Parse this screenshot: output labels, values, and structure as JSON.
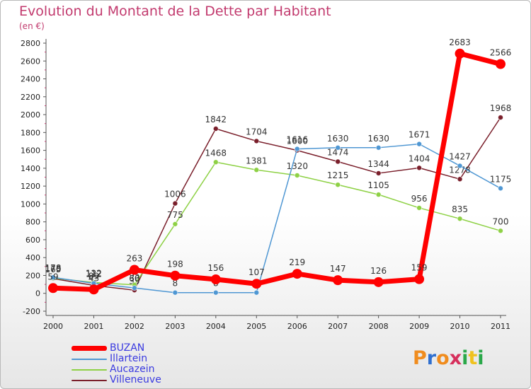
{
  "title": "Evolution du Montant de la Dette par Habitant",
  "subtitle": "(en €)",
  "logo": {
    "letters": [
      "P",
      "r",
      "o",
      "x",
      "i",
      "t",
      "i"
    ],
    "colors": [
      "#f08c1e",
      "#2f6fcf",
      "#f08c1e",
      "#d62f5c",
      "#2aa84a",
      "#f0c21e",
      "#2aa84a"
    ]
  },
  "chart_data": {
    "type": "line",
    "x": [
      "2000",
      "2001",
      "2002",
      "2003",
      "2004",
      "2005",
      "2006",
      "2007",
      "2008",
      "2009",
      "2010",
      "2011"
    ],
    "ylim": [
      -200,
      2800
    ],
    "yticks": [
      "-200",
      "0",
      "200",
      "400",
      "600",
      "800",
      "1000",
      "1200",
      "1400",
      "1600",
      "1800",
      "2000",
      "2200",
      "2400",
      "2600",
      "2800"
    ],
    "grid": false,
    "legend_position": "bottom-left",
    "series": [
      {
        "name": "Villeneuve",
        "color": "#7a1f2b",
        "values": [
          165,
          89,
          35,
          1006,
          1842,
          1704,
          1600,
          1474,
          1344,
          1404,
          1278,
          1968
        ],
        "labels": [
          "165",
          "89",
          "35",
          "1006",
          "1842",
          "1704",
          "1600",
          "1474",
          "1344",
          "1404",
          "1278",
          "1968"
        ]
      },
      {
        "name": "Aucazein",
        "color": "#8ed145",
        "values": [
          170,
          122,
          95,
          775,
          1468,
          1381,
          1320,
          1215,
          1105,
          956,
          835,
          700
        ],
        "labels": [
          "170",
          "122",
          "95",
          "775",
          "1468",
          "1381",
          "1320",
          "1215",
          "1105",
          "956",
          "835",
          "700"
        ]
      },
      {
        "name": "Illartein",
        "color": "#4f97d3",
        "values": [
          178,
          112,
          60,
          8,
          8,
          8,
          1616,
          1630,
          1630,
          1671,
          1427,
          1175
        ],
        "labels": [
          "178",
          "112",
          "60",
          "8",
          "8",
          "",
          "1616",
          "1630",
          "1630",
          "1671",
          "1427",
          "1175"
        ]
      },
      {
        "name": "BUZAN",
        "color": "#ff0000",
        "values": [
          59,
          43,
          263,
          198,
          156,
          107,
          219,
          147,
          126,
          159,
          2683,
          2566
        ],
        "labels": [
          "59",
          "43",
          "263",
          "198",
          "156",
          "107",
          "219",
          "147",
          "126",
          "159",
          "2683",
          "2566"
        ]
      }
    ],
    "legend_order": [
      "BUZAN",
      "Illartein",
      "Aucazein",
      "Villeneuve"
    ]
  }
}
